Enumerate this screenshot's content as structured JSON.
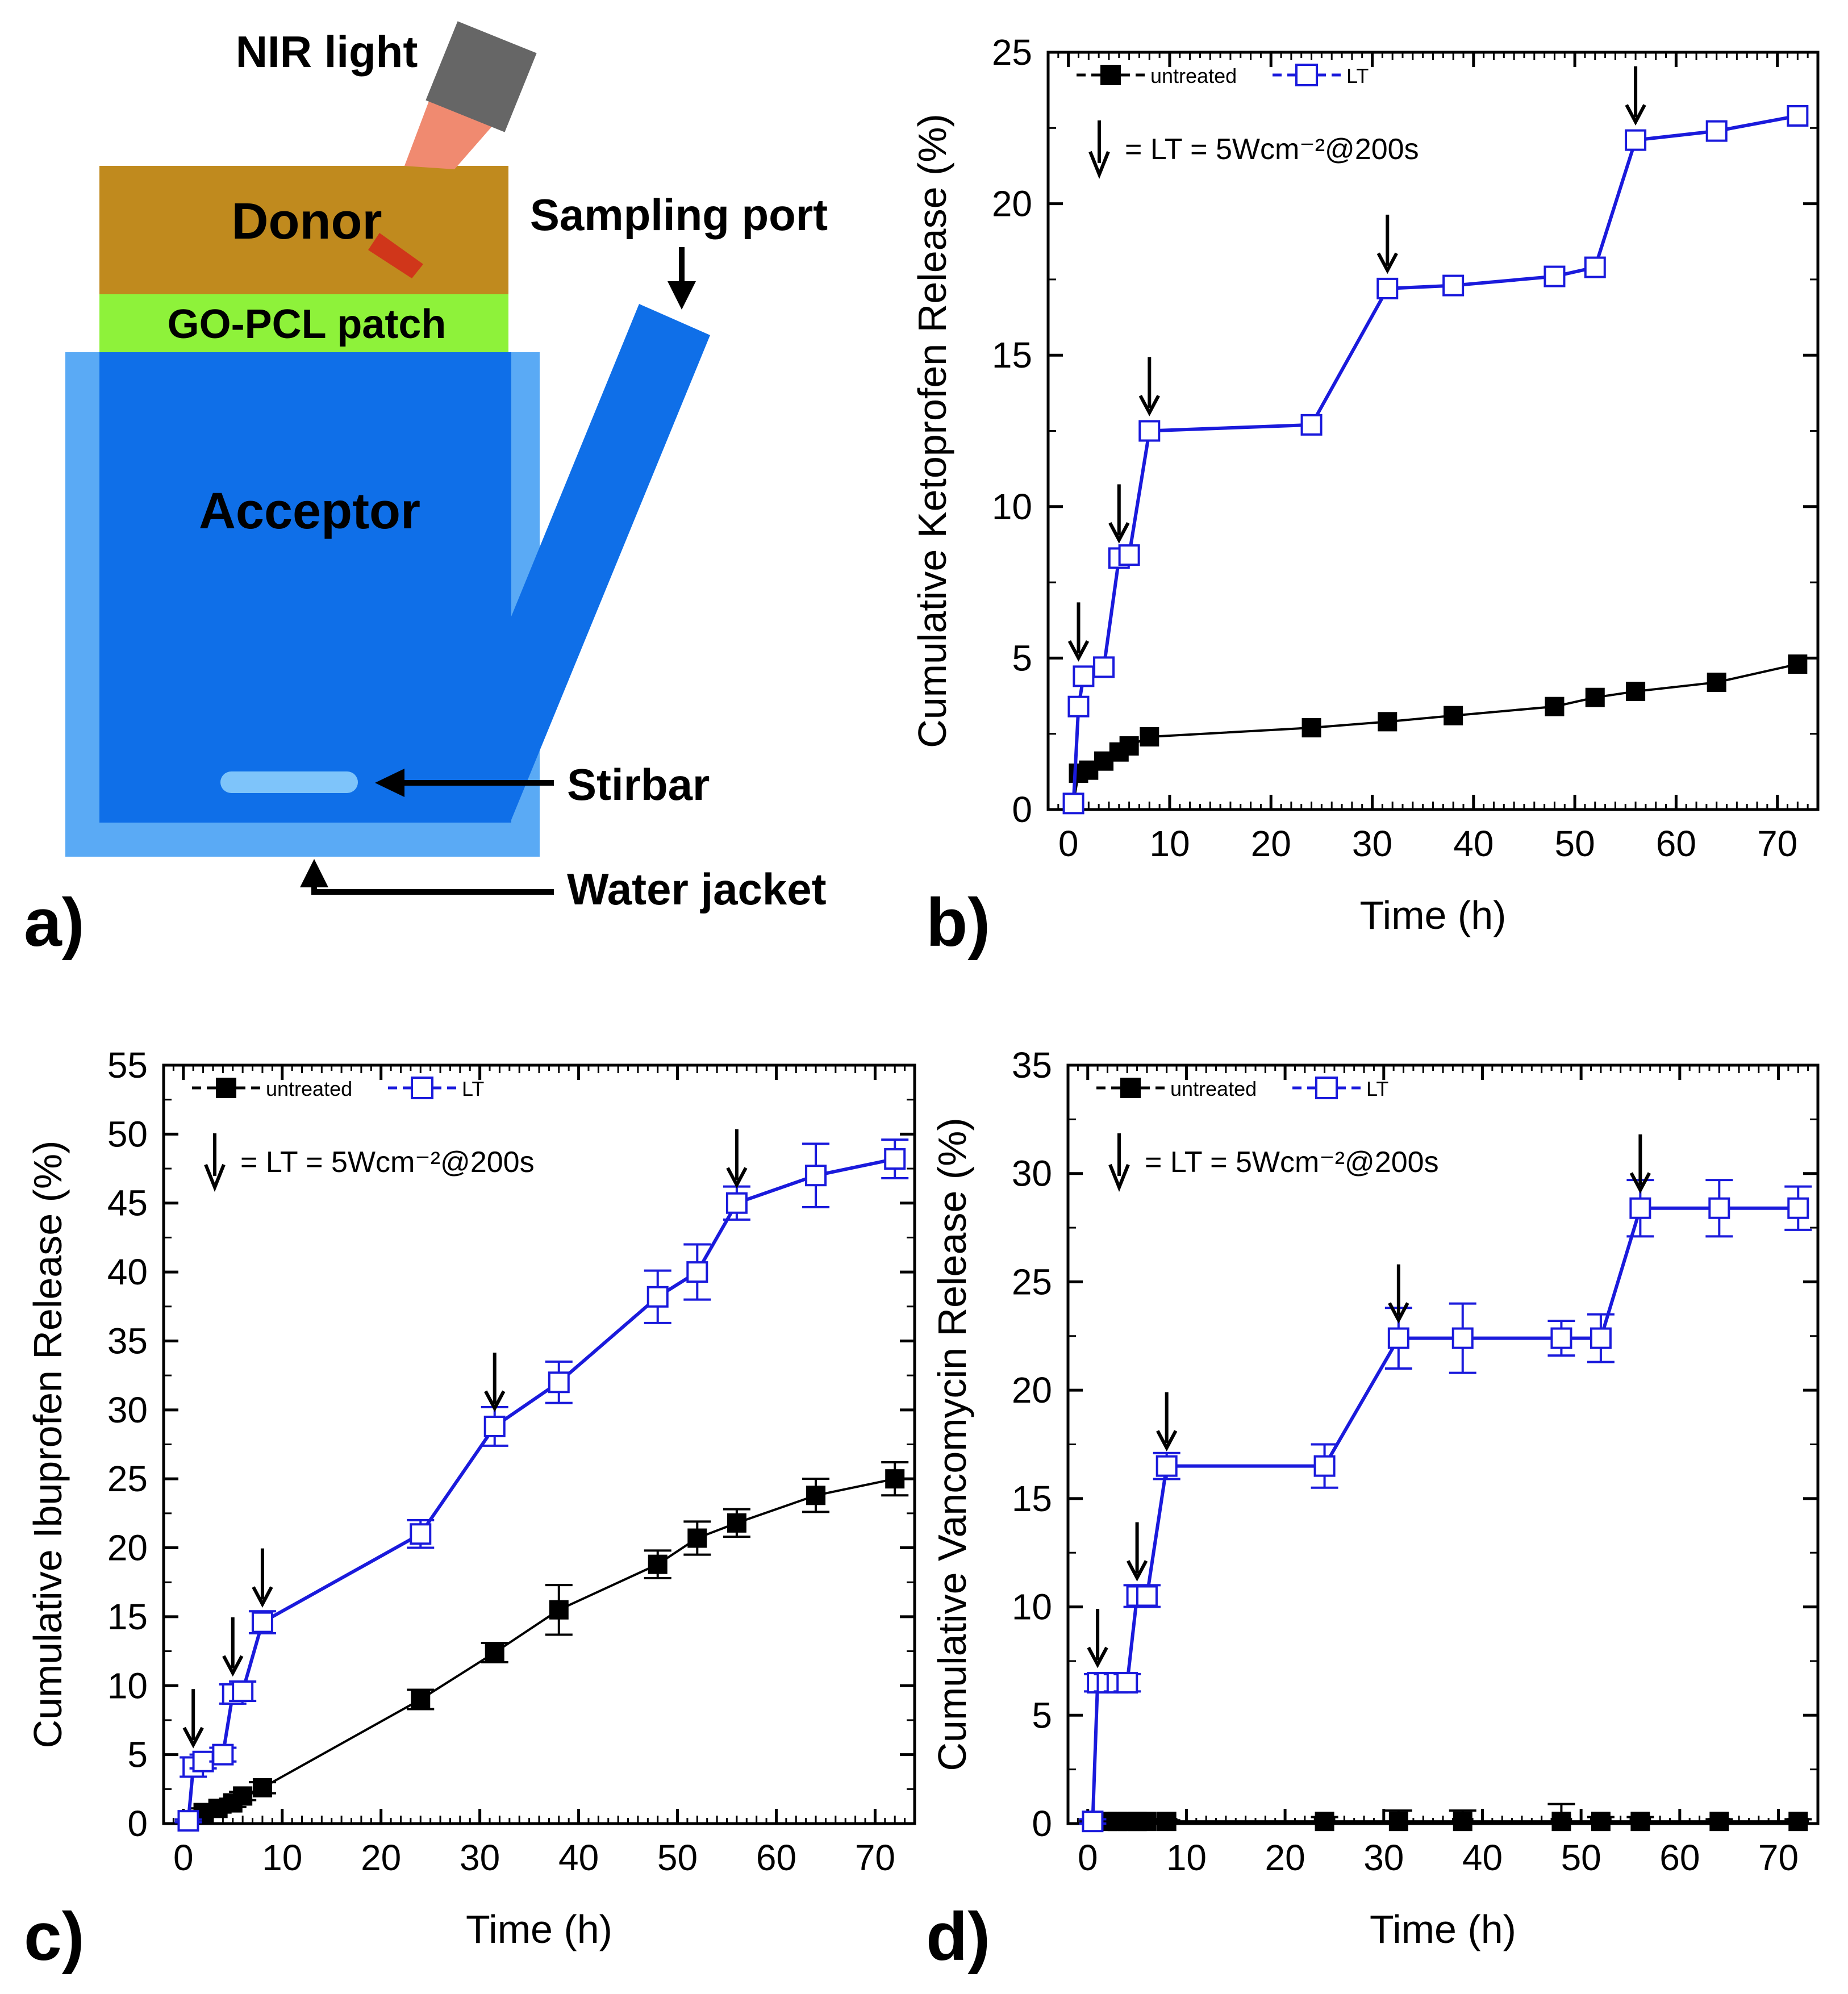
{
  "panel_a": {
    "label": "a)",
    "nir_light": "NIR light",
    "donor": "Donor",
    "patch": "GO-PCL patch",
    "acceptor": "Acceptor",
    "sampling_port": "Sampling port",
    "stirbar": "Stirbar",
    "water_jacket": "Water jacket"
  },
  "colors": {
    "donor": "#c08a1e",
    "patch": "#8ef23a",
    "acceptor": "#0f6fe8",
    "jacket": "#5aaaf5",
    "nir": "#f08a70",
    "lamp": "#666666",
    "lt_series": "#1a1adc",
    "untreated_series": "#000000"
  },
  "chart_data": [
    {
      "panel": "b)",
      "type": "line",
      "xlabel": "Time (h)",
      "ylabel": "Cumulative Ketoprofen Release (%)",
      "xlim": [
        -2,
        74
      ],
      "ylim": [
        0,
        25
      ],
      "xticks": [
        0,
        10,
        20,
        30,
        40,
        50,
        60,
        70
      ],
      "yticks": [
        0,
        5,
        10,
        15,
        20,
        25
      ],
      "legend": [
        "untreated",
        "LT"
      ],
      "annotation": "= LT = 5Wcm⁻²@200s",
      "arrows_at": [
        [
          1,
          4.4
        ],
        [
          5,
          8.3
        ],
        [
          8,
          12.5
        ],
        [
          31.5,
          17.2
        ],
        [
          56,
          22.1
        ]
      ],
      "series": [
        {
          "name": "untreated",
          "x": [
            0.5,
            1,
            2,
            3.5,
            5,
            6,
            8,
            24,
            31.5,
            38,
            48,
            52,
            56,
            64,
            72
          ],
          "y": [
            0.2,
            1.2,
            1.3,
            1.6,
            1.9,
            2.1,
            2.4,
            2.7,
            2.9,
            3.1,
            3.4,
            3.7,
            3.9,
            4.2,
            4.8
          ],
          "err": null
        },
        {
          "name": "LT",
          "x": [
            0.5,
            1,
            1.5,
            3.5,
            5,
            6,
            8,
            24,
            31.5,
            38,
            48,
            52,
            56,
            64,
            72
          ],
          "y": [
            0.2,
            3.4,
            4.4,
            4.7,
            8.3,
            8.4,
            12.5,
            12.7,
            17.2,
            17.3,
            17.6,
            17.9,
            22.1,
            22.4,
            22.9
          ],
          "err": null
        }
      ]
    },
    {
      "panel": "c)",
      "type": "line",
      "xlabel": "Time (h)",
      "ylabel": "Cumulative Ibuprofen Release (%)",
      "xlim": [
        -2,
        74
      ],
      "ylim": [
        0,
        55
      ],
      "xticks": [
        0,
        10,
        20,
        30,
        40,
        50,
        60,
        70
      ],
      "yticks": [
        0,
        5,
        10,
        15,
        20,
        25,
        30,
        35,
        40,
        45,
        50,
        55
      ],
      "legend": [
        "untreated",
        "LT"
      ],
      "annotation": "= LT = 5Wcm⁻²@200s",
      "arrows_at": [
        [
          1,
          4.4
        ],
        [
          5,
          9.6
        ],
        [
          8,
          14.6
        ],
        [
          31.5,
          28.8
        ],
        [
          56,
          45.0
        ]
      ],
      "series": [
        {
          "name": "untreated",
          "x": [
            0.5,
            2,
            3.5,
            5,
            6,
            8,
            24,
            31.5,
            38,
            48,
            52,
            56,
            64,
            72
          ],
          "y": [
            0.2,
            0.8,
            1.1,
            1.5,
            2.0,
            2.6,
            9.0,
            12.4,
            15.5,
            18.8,
            20.7,
            21.8,
            23.8,
            25.0
          ],
          "err": [
            0.1,
            0.3,
            0.3,
            0.3,
            0.3,
            0.4,
            0.7,
            0.7,
            1.8,
            1.0,
            1.2,
            1.0,
            1.2,
            1.2
          ]
        },
        {
          "name": "LT",
          "x": [
            0.5,
            1,
            2,
            4,
            5,
            6,
            8,
            24,
            31.5,
            38,
            48,
            52,
            56,
            64,
            72
          ],
          "y": [
            0.2,
            4.1,
            4.5,
            5.0,
            9.4,
            9.6,
            14.6,
            21.0,
            28.8,
            32.0,
            38.2,
            40.0,
            45.0,
            47.0,
            48.2
          ],
          "err": [
            0.1,
            0.7,
            0.5,
            0.5,
            0.7,
            0.7,
            0.8,
            1.0,
            1.4,
            1.5,
            1.9,
            2.0,
            1.2,
            2.3,
            1.4
          ]
        }
      ]
    },
    {
      "panel": "d)",
      "type": "line",
      "xlabel": "Time (h)",
      "ylabel": "Cumulative Vancomycin Release (%)",
      "xlim": [
        -2,
        74
      ],
      "ylim": [
        0,
        35
      ],
      "xticks": [
        0,
        10,
        20,
        30,
        40,
        50,
        60,
        70
      ],
      "yticks": [
        0,
        5,
        10,
        15,
        20,
        25,
        30,
        35
      ],
      "legend": [
        "untreated",
        "LT"
      ],
      "annotation": "= LT = 5Wcm⁻²@200s",
      "arrows_at": [
        [
          1,
          6.5
        ],
        [
          5,
          10.5
        ],
        [
          8,
          16.5
        ],
        [
          31.5,
          22.4
        ],
        [
          56,
          28.4
        ]
      ],
      "series": [
        {
          "name": "untreated",
          "x": [
            0.5,
            2,
            3,
            4,
            5,
            6,
            8,
            24,
            31.5,
            38,
            48,
            52,
            56,
            64,
            72
          ],
          "y": [
            0.1,
            0.1,
            0.1,
            0.1,
            0.1,
            0.1,
            0.1,
            0.1,
            0.1,
            0.1,
            0.1,
            0.1,
            0.1,
            0.1,
            0.1
          ],
          "err": [
            0.05,
            0.05,
            0.05,
            0.05,
            0.05,
            0.05,
            0.05,
            0.2,
            0.5,
            0.5,
            0.8,
            0.2,
            0.2,
            0.1,
            0.1
          ]
        },
        {
          "name": "LT",
          "x": [
            0.5,
            1,
            2,
            3,
            4,
            5,
            6,
            8,
            24,
            31.5,
            38,
            48,
            52,
            56,
            64,
            72
          ],
          "y": [
            0.1,
            6.5,
            6.5,
            6.5,
            6.5,
            10.5,
            10.5,
            16.5,
            16.5,
            22.4,
            22.4,
            22.4,
            22.4,
            28.4,
            28.4,
            28.4
          ],
          "err": [
            0.1,
            0.4,
            0.4,
            0.4,
            0.4,
            0.5,
            0.5,
            0.6,
            1.0,
            1.4,
            1.6,
            0.8,
            1.1,
            1.3,
            1.3,
            1.0
          ]
        }
      ]
    }
  ]
}
